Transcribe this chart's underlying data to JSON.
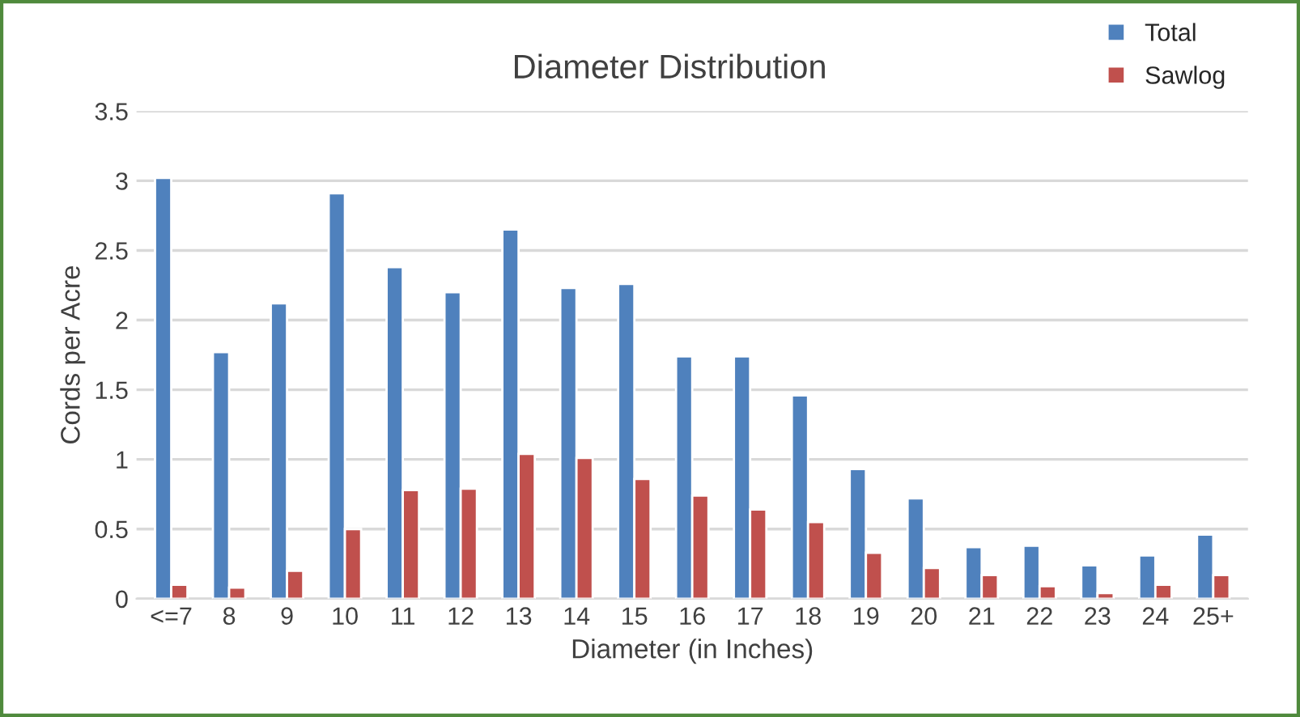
{
  "chart_data": {
    "type": "bar",
    "title": "Diameter Distribution",
    "xlabel": "Diameter (in Inches)",
    "ylabel": "Cords per Acre",
    "categories": [
      "<=7",
      "8",
      "9",
      "10",
      "11",
      "12",
      "13",
      "14",
      "15",
      "16",
      "17",
      "18",
      "19",
      "20",
      "21",
      "22",
      "23",
      "24",
      "25+"
    ],
    "series": [
      {
        "name": "Total",
        "color": "#4f81bd",
        "values": [
          3.02,
          1.77,
          2.12,
          2.91,
          2.38,
          2.2,
          2.65,
          2.23,
          2.26,
          1.74,
          1.74,
          1.46,
          0.93,
          0.72,
          0.37,
          0.38,
          0.24,
          0.31,
          0.46
        ]
      },
      {
        "name": "Sawlog",
        "color": "#c0504d",
        "values": [
          0.1,
          0.08,
          0.2,
          0.5,
          0.78,
          0.79,
          1.04,
          1.01,
          0.86,
          0.74,
          0.64,
          0.55,
          0.33,
          0.22,
          0.17,
          0.09,
          0.04,
          0.1,
          0.17
        ]
      }
    ],
    "ylim": [
      0,
      3.5
    ],
    "yticks": [
      0,
      0.5,
      1,
      1.5,
      2,
      2.5,
      3,
      3.5
    ],
    "grid": "y",
    "legend": "top right"
  }
}
